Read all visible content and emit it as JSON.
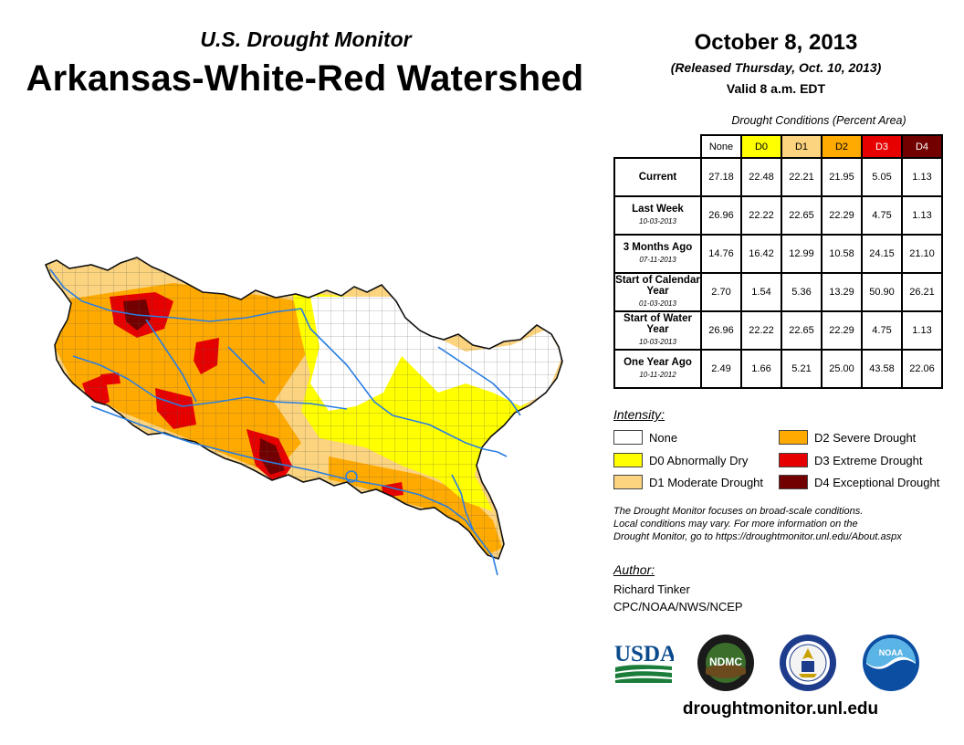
{
  "header": {
    "subtitle": "U.S. Drought Monitor",
    "title": "Arkansas-White-Red Watershed",
    "date": "October 8, 2013",
    "released": "(Released Thursday, Oct. 10, 2013)",
    "valid": "Valid 8 a.m. EDT"
  },
  "table": {
    "caption": "Drought Conditions (Percent Area)",
    "columns": [
      "None",
      "D0",
      "D1",
      "D2",
      "D3",
      "D4"
    ],
    "rows": [
      {
        "label": "Current",
        "sub": "",
        "values": [
          "27.18",
          "22.48",
          "22.21",
          "21.95",
          "5.05",
          "1.13"
        ]
      },
      {
        "label": "Last Week",
        "sub": "10-03-2013",
        "values": [
          "26.96",
          "22.22",
          "22.65",
          "22.29",
          "4.75",
          "1.13"
        ]
      },
      {
        "label": "3 Months Ago",
        "sub": "07-11-2013",
        "values": [
          "14.76",
          "16.42",
          "12.99",
          "10.58",
          "24.15",
          "21.10"
        ]
      },
      {
        "label": "Start of Calendar Year",
        "sub": "01-03-2013",
        "values": [
          "2.70",
          "1.54",
          "5.36",
          "13.29",
          "50.90",
          "26.21"
        ]
      },
      {
        "label": "Start of Water Year",
        "sub": "10-03-2013",
        "values": [
          "26.96",
          "22.22",
          "22.65",
          "22.29",
          "4.75",
          "1.13"
        ]
      },
      {
        "label": "One Year Ago",
        "sub": "10-11-2012",
        "values": [
          "2.49",
          "1.66",
          "5.21",
          "25.00",
          "43.58",
          "22.06"
        ]
      }
    ]
  },
  "legend": {
    "title": "Intensity:",
    "items": [
      {
        "label": "None",
        "color": "#ffffff"
      },
      {
        "label": "D0 Abnormally Dry",
        "color": "#ffff00"
      },
      {
        "label": "D1 Moderate Drought",
        "color": "#fcd37f"
      },
      {
        "label": "D2 Severe Drought",
        "color": "#ffaa00"
      },
      {
        "label": "D3 Extreme Drought",
        "color": "#e60000"
      },
      {
        "label": "D4 Exceptional Drought",
        "color": "#730000"
      }
    ]
  },
  "note": {
    "line1": "The Drought Monitor focuses on broad-scale conditions.",
    "line2": "Local conditions may vary. For more information on the",
    "line3": "Drought Monitor, go to https://droughtmonitor.unl.edu/About.aspx"
  },
  "author": {
    "title": "Author:",
    "name": "Richard Tinker",
    "org": "CPC/NOAA/NWS/NCEP"
  },
  "logos": {
    "usda": "USDA",
    "ndmc": "NDMC",
    "noaa": "NOAA"
  },
  "website": "droughtmonitor.unl.edu"
}
